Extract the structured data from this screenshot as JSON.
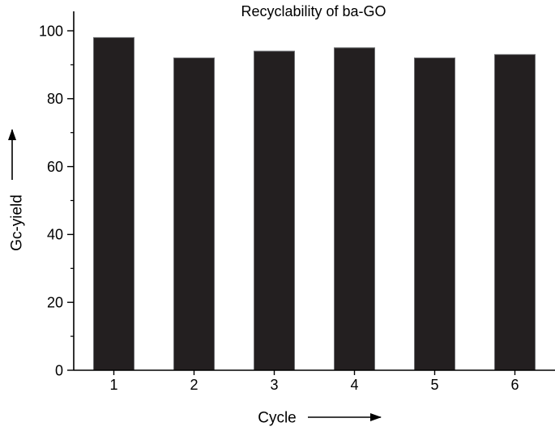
{
  "chart_data": {
    "type": "bar",
    "title": "Recyclability of ba-GO",
    "xlabel": "Cycle",
    "ylabel": "Gc-yield",
    "categories": [
      "1",
      "2",
      "3",
      "4",
      "5",
      "6"
    ],
    "values": [
      98,
      92,
      94,
      95,
      92,
      93
    ],
    "ylim": [
      0,
      105
    ],
    "yticks": [
      0,
      20,
      40,
      60,
      80,
      100
    ],
    "grid": false,
    "legend": "none",
    "bar_color": "#231f20"
  }
}
